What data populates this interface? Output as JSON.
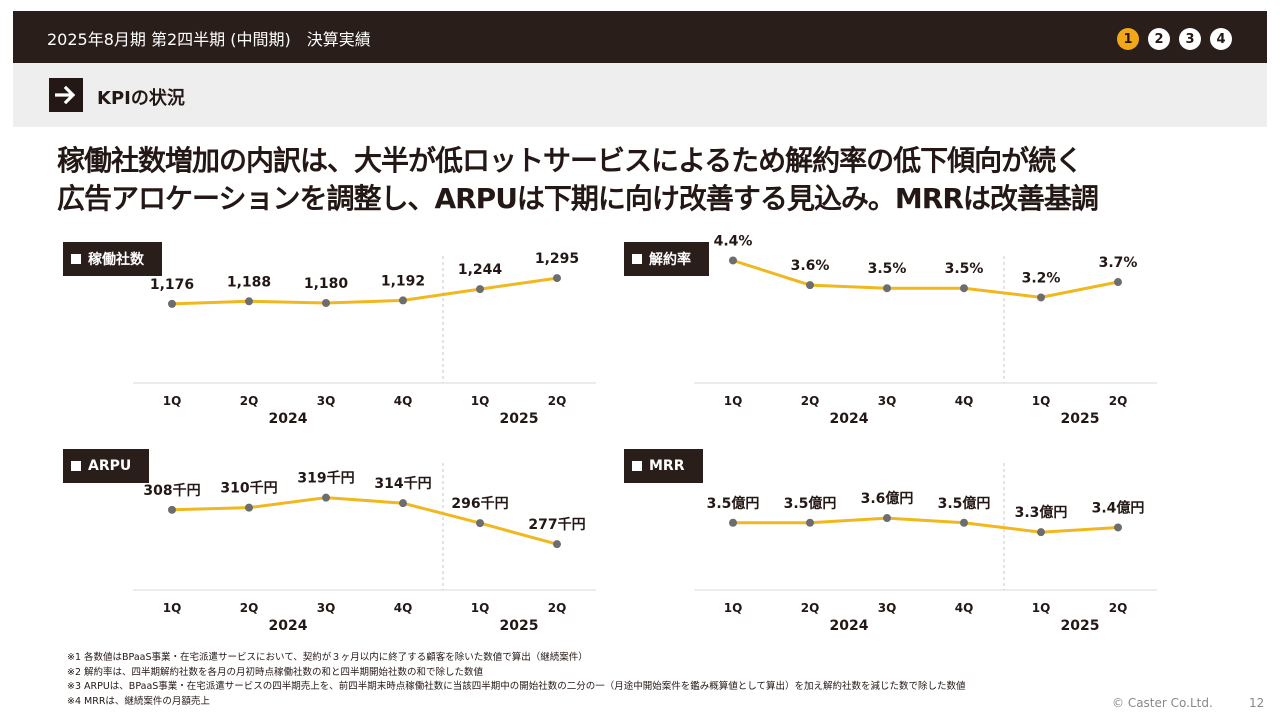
{
  "header": {
    "title": "2025年8月期 第2四半期 (中間期)　決算実績",
    "pages": [
      "1",
      "2",
      "3",
      "4"
    ],
    "active_page": "1"
  },
  "section": {
    "title": "KPIの状況",
    "icon": "arrow-right-icon"
  },
  "headline": {
    "line1": "稼働社数増加の内訳は、大半が低ロットサービスによるため解約率の低下傾向が続く",
    "line2": "広告アロケーションを調整し、ARPUは下期に向け改善する見込み。MRRは改善基調"
  },
  "colors": {
    "line": "#f0b81e",
    "point": "#6d6d6d",
    "dark": "#2a1e1b",
    "accent": "#f0a819"
  },
  "chart_data": [
    {
      "type": "line",
      "title": "稼働社数",
      "categories": [
        "1Q",
        "2Q",
        "3Q",
        "4Q",
        "1Q",
        "2Q"
      ],
      "years": [
        "2024",
        "2025"
      ],
      "values": [
        1176,
        1188,
        1180,
        1192,
        1244,
        1295
      ],
      "labels": [
        "1,176",
        "1,188",
        "1,180",
        "1,192",
        "1,244",
        "1,295"
      ],
      "ylim": [
        1000,
        1300
      ]
    },
    {
      "type": "line",
      "title": "解約率",
      "categories": [
        "1Q",
        "2Q",
        "3Q",
        "4Q",
        "1Q",
        "2Q"
      ],
      "years": [
        "2024",
        "2025"
      ],
      "values": [
        4.4,
        3.6,
        3.5,
        3.5,
        3.2,
        3.7
      ],
      "labels": [
        "4.4%",
        "3.6%",
        "3.5%",
        "3.5%",
        "3.2%",
        "3.7%"
      ],
      "ylim": [
        0,
        5
      ]
    },
    {
      "type": "line",
      "title": "ARPU",
      "categories": [
        "1Q",
        "2Q",
        "3Q",
        "4Q",
        "1Q",
        "2Q"
      ],
      "years": [
        "2024",
        "2025"
      ],
      "values": [
        308,
        310,
        319,
        314,
        296,
        277
      ],
      "labels": [
        "308千円",
        "310千円",
        "319千円",
        "314千円",
        "296千円",
        "277千円"
      ],
      "ylim": [
        260,
        325
      ]
    },
    {
      "type": "line",
      "title": "MRR",
      "categories": [
        "1Q",
        "2Q",
        "3Q",
        "4Q",
        "1Q",
        "2Q"
      ],
      "years": [
        "2024",
        "2025"
      ],
      "values": [
        3.5,
        3.5,
        3.6,
        3.5,
        3.3,
        3.4
      ],
      "labels": [
        "3.5億円",
        "3.5億円",
        "3.6億円",
        "3.5億円",
        "3.3億円",
        "3.4億円"
      ],
      "ylim": [
        2.9,
        3.75
      ]
    }
  ],
  "footnotes": [
    "※1 各数値はBPaaS事業・在宅派遣サービスにおいて、契約が３ヶ月以内に終了する顧客を除いた数値で算出（継続案件）",
    "※2 解約率は、四半期解約社数を各月の月初時点稼働社数の和と四半期開始社数の和で除した数値",
    "※3 ARPUは、BPaaS事業・在宅派遣サービスの四半期売上を、前四半期末時点稼働社数に当該四半期中の開始社数の二分の一（月途中開始案件を鑑み概算値として算出）を加え解約社数を減じた数で除した数値",
    "※4 MRRは、継続案件の月額売上"
  ],
  "footer": {
    "copyright": "© Caster Co.Ltd.",
    "page": "12"
  }
}
